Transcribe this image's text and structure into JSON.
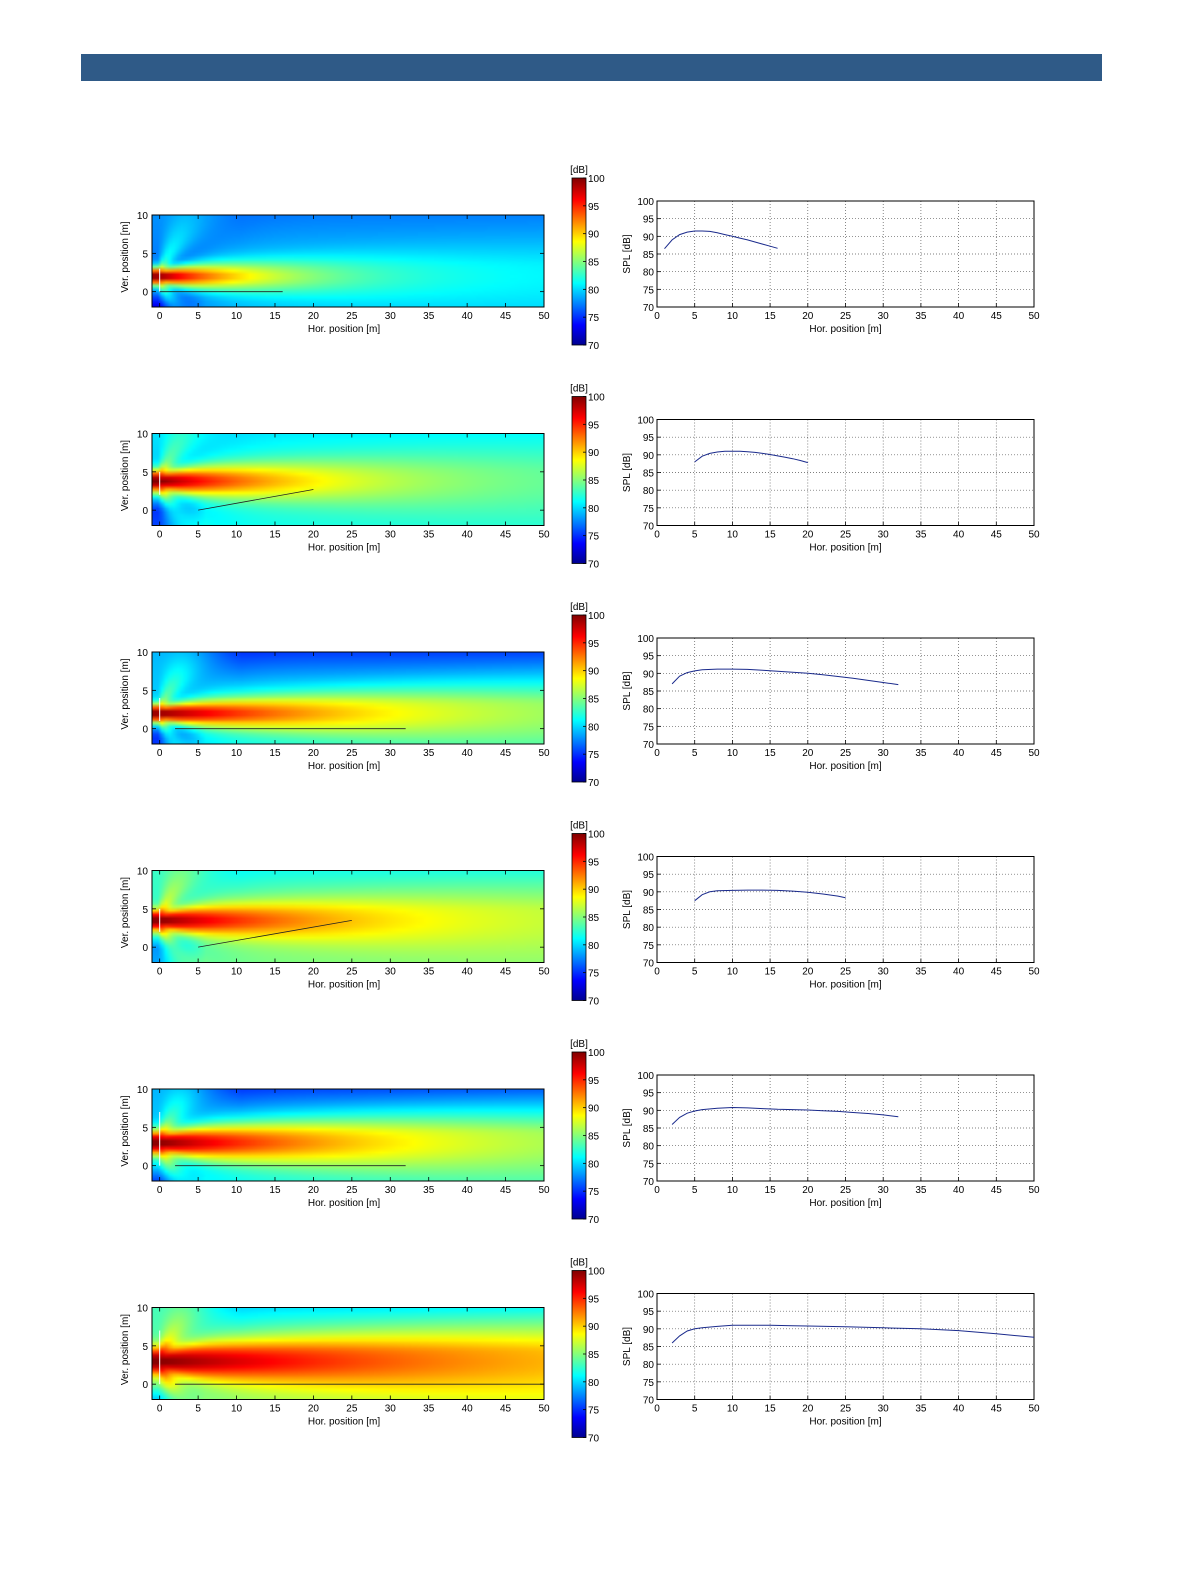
{
  "page": {
    "header_bar_color": "#2f5a87"
  },
  "colormap": {
    "name": "jet",
    "label": "[dB]",
    "range": [
      70,
      100
    ],
    "ticks": [
      "100",
      "95",
      "90",
      "85",
      "80",
      "75",
      "70"
    ]
  },
  "chart_data": [
    {
      "type": "heatmap",
      "xlabel": "Hor. position [m]",
      "ylabel": "Ver. position [m]",
      "xlim": [
        -1,
        50
      ],
      "ylim": [
        -2,
        10
      ],
      "xticks": [
        0,
        5,
        10,
        15,
        20,
        25,
        30,
        35,
        40,
        45,
        50
      ],
      "yticks": [
        0,
        5,
        10
      ],
      "source": {
        "x": 0,
        "ytop": 3,
        "ybot": 0
      },
      "beam": {
        "y": 2,
        "width": 1.1,
        "length": 14,
        "peak_db": 100,
        "tail_db": 83,
        "far_db": 79.5,
        "top_db": 77
      },
      "audience_line": [
        [
          0,
          0
        ],
        [
          16,
          0
        ]
      ]
    },
    {
      "type": "heatmap",
      "xlabel": "Hor. position [m]",
      "ylabel": "Ver. position [m]",
      "xlim": [
        -1,
        50
      ],
      "ylim": [
        -2,
        10
      ],
      "xticks": [
        0,
        5,
        10,
        15,
        20,
        25,
        30,
        35,
        40,
        45,
        50
      ],
      "yticks": [
        0,
        5,
        10
      ],
      "source": {
        "x": 0,
        "ytop": 5,
        "ybot": 2
      },
      "beam": {
        "y": 3.8,
        "width": 1.4,
        "length": 20,
        "peak_db": 100,
        "tail_db": 85,
        "far_db": 82,
        "top_db": 80
      },
      "audience_line": [
        [
          5,
          0
        ],
        [
          20,
          2.7
        ]
      ]
    },
    {
      "type": "heatmap",
      "xlabel": "Hor. position [m]",
      "ylabel": "Ver. position [m]",
      "xlim": [
        -1,
        50
      ],
      "ylim": [
        -2,
        10
      ],
      "xticks": [
        0,
        5,
        10,
        15,
        20,
        25,
        30,
        35,
        40,
        45,
        50
      ],
      "yticks": [
        0,
        5,
        10
      ],
      "source": {
        "x": 0,
        "ytop": 4,
        "ybot": 1
      },
      "beam": {
        "y": 2,
        "width": 1.1,
        "length": 28,
        "peak_db": 100,
        "tail_db": 86,
        "far_db": 82,
        "top_db": 74
      },
      "audience_line": [
        [
          2,
          0
        ],
        [
          32,
          0
        ]
      ]
    },
    {
      "type": "heatmap",
      "xlabel": "Hor. position [m]",
      "ylabel": "Ver. position [m]",
      "xlim": [
        -1,
        50
      ],
      "ylim": [
        -2,
        10
      ],
      "xticks": [
        0,
        5,
        10,
        15,
        20,
        25,
        30,
        35,
        40,
        45,
        50
      ],
      "yticks": [
        0,
        5,
        10
      ],
      "source": {
        "x": 0,
        "ytop": 5,
        "ybot": 2
      },
      "beam": {
        "y": 3.5,
        "width": 1.3,
        "length": 24,
        "peak_db": 100,
        "tail_db": 86,
        "far_db": 85,
        "top_db": 80
      },
      "audience_line": [
        [
          5,
          0
        ],
        [
          25,
          3.5
        ]
      ]
    },
    {
      "type": "heatmap",
      "xlabel": "Hor. position [m]",
      "ylabel": "Ver. position [m]",
      "xlim": [
        -1,
        50
      ],
      "ylim": [
        -2,
        10
      ],
      "xticks": [
        0,
        5,
        10,
        15,
        20,
        25,
        30,
        35,
        40,
        45,
        50
      ],
      "yticks": [
        0,
        5,
        10
      ],
      "source": {
        "x": 0,
        "ytop": 7,
        "ybot": 0
      },
      "beam": {
        "y": 3,
        "width": 1.6,
        "length": 30,
        "peak_db": 100,
        "tail_db": 86,
        "far_db": 82,
        "top_db": 73
      },
      "audience_line": [
        [
          2,
          0
        ],
        [
          32,
          0
        ]
      ]
    },
    {
      "type": "heatmap",
      "xlabel": "Hor. position [m]",
      "ylabel": "Ver. position [m]",
      "xlim": [
        -1,
        50
      ],
      "ylim": [
        -2,
        10
      ],
      "xticks": [
        0,
        5,
        10,
        15,
        20,
        25,
        30,
        35,
        40,
        45,
        50
      ],
      "yticks": [
        0,
        5,
        10
      ],
      "source": {
        "x": 0,
        "ytop": 7,
        "ybot": 0
      },
      "beam": {
        "y": 3,
        "width": 1.8,
        "length": 45,
        "peak_db": 100,
        "tail_db": 88,
        "far_db": 86,
        "top_db": 78
      },
      "audience_line": [
        [
          2,
          0
        ],
        [
          50,
          0
        ]
      ]
    },
    {
      "type": "line",
      "xlabel": "Hor. position [m]",
      "ylabel": "SPL [dB]",
      "xlim": [
        0,
        50
      ],
      "ylim": [
        70,
        100
      ],
      "xticks": [
        0,
        5,
        10,
        15,
        20,
        25,
        30,
        35,
        40,
        45,
        50
      ],
      "yticks": [
        70,
        75,
        80,
        85,
        90,
        95,
        100
      ],
      "grid": true,
      "series": [
        {
          "color": "#1a2a8c",
          "x": [
            1,
            2,
            3,
            4,
            5,
            6,
            7,
            8,
            9,
            10,
            11,
            12,
            13,
            14,
            15,
            16
          ],
          "y": [
            86.5,
            89.0,
            90.5,
            91.2,
            91.5,
            91.5,
            91.4,
            91.0,
            90.5,
            90.0,
            89.5,
            89.0,
            88.4,
            87.8,
            87.2,
            86.6
          ]
        }
      ]
    },
    {
      "type": "line",
      "xlabel": "Hor. position [m]",
      "ylabel": "SPL [dB]",
      "xlim": [
        0,
        50
      ],
      "ylim": [
        70,
        100
      ],
      "xticks": [
        0,
        5,
        10,
        15,
        20,
        25,
        30,
        35,
        40,
        45,
        50
      ],
      "yticks": [
        70,
        75,
        80,
        85,
        90,
        95,
        100
      ],
      "grid": true,
      "series": [
        {
          "color": "#1a2a8c",
          "x": [
            5,
            6,
            7,
            8,
            9,
            10,
            11,
            12,
            13,
            14,
            15,
            16,
            17,
            18,
            19,
            20
          ],
          "y": [
            88.0,
            89.6,
            90.4,
            90.8,
            91.0,
            91.0,
            91.0,
            90.9,
            90.7,
            90.4,
            90.1,
            89.7,
            89.3,
            88.9,
            88.4,
            87.8
          ]
        }
      ]
    },
    {
      "type": "line",
      "xlabel": "Hor. position [m]",
      "ylabel": "SPL [dB]",
      "xlim": [
        0,
        50
      ],
      "ylim": [
        70,
        100
      ],
      "xticks": [
        0,
        5,
        10,
        15,
        20,
        25,
        30,
        35,
        40,
        45,
        50
      ],
      "yticks": [
        70,
        75,
        80,
        85,
        90,
        95,
        100
      ],
      "grid": true,
      "series": [
        {
          "color": "#1a2a8c",
          "x": [
            2,
            3,
            4,
            5,
            6,
            8,
            10,
            12,
            14,
            16,
            18,
            20,
            22,
            24,
            26,
            28,
            30,
            32
          ],
          "y": [
            87.0,
            89.2,
            90.2,
            90.7,
            91.0,
            91.2,
            91.2,
            91.1,
            90.9,
            90.6,
            90.3,
            90.0,
            89.6,
            89.1,
            88.6,
            88.0,
            87.4,
            86.8
          ]
        }
      ]
    },
    {
      "type": "line",
      "xlabel": "Hor. position [m]",
      "ylabel": "SPL [dB]",
      "xlim": [
        0,
        50
      ],
      "ylim": [
        70,
        100
      ],
      "xticks": [
        0,
        5,
        10,
        15,
        20,
        25,
        30,
        35,
        40,
        45,
        50
      ],
      "yticks": [
        70,
        75,
        80,
        85,
        90,
        95,
        100
      ],
      "grid": true,
      "series": [
        {
          "color": "#1a2a8c",
          "x": [
            5,
            6,
            7,
            8,
            10,
            12,
            14,
            16,
            18,
            20,
            22,
            24,
            25
          ],
          "y": [
            87.5,
            89.2,
            90.0,
            90.3,
            90.4,
            90.5,
            90.5,
            90.4,
            90.2,
            89.9,
            89.4,
            88.8,
            88.3
          ]
        }
      ]
    },
    {
      "type": "line",
      "xlabel": "Hor. position [m]",
      "ylabel": "SPL [dB]",
      "xlim": [
        0,
        50
      ],
      "ylim": [
        70,
        100
      ],
      "xticks": [
        0,
        5,
        10,
        15,
        20,
        25,
        30,
        35,
        40,
        45,
        50
      ],
      "yticks": [
        70,
        75,
        80,
        85,
        90,
        95,
        100
      ],
      "grid": true,
      "series": [
        {
          "color": "#1a2a8c",
          "x": [
            2,
            3,
            4,
            5,
            6,
            8,
            10,
            12,
            14,
            16,
            18,
            20,
            22,
            24,
            26,
            28,
            30,
            32
          ],
          "y": [
            86.0,
            88.0,
            89.2,
            89.8,
            90.2,
            90.6,
            90.8,
            90.7,
            90.5,
            90.3,
            90.2,
            90.1,
            89.9,
            89.7,
            89.4,
            89.1,
            88.7,
            88.2
          ]
        }
      ]
    },
    {
      "type": "line",
      "xlabel": "Hor. position [m]",
      "ylabel": "SPL [dB]",
      "xlim": [
        0,
        50
      ],
      "ylim": [
        70,
        100
      ],
      "xticks": [
        0,
        5,
        10,
        15,
        20,
        25,
        30,
        35,
        40,
        45,
        50
      ],
      "yticks": [
        70,
        75,
        80,
        85,
        90,
        95,
        100
      ],
      "grid": true,
      "series": [
        {
          "color": "#1a2a8c",
          "x": [
            2,
            3,
            4,
            5,
            6,
            8,
            10,
            12,
            15,
            18,
            20,
            25,
            30,
            35,
            40,
            45,
            50
          ],
          "y": [
            86.0,
            88.0,
            89.4,
            90.0,
            90.3,
            90.7,
            91.0,
            91.0,
            91.0,
            90.9,
            90.8,
            90.6,
            90.3,
            90.0,
            89.5,
            88.6,
            87.6
          ]
        }
      ]
    }
  ]
}
